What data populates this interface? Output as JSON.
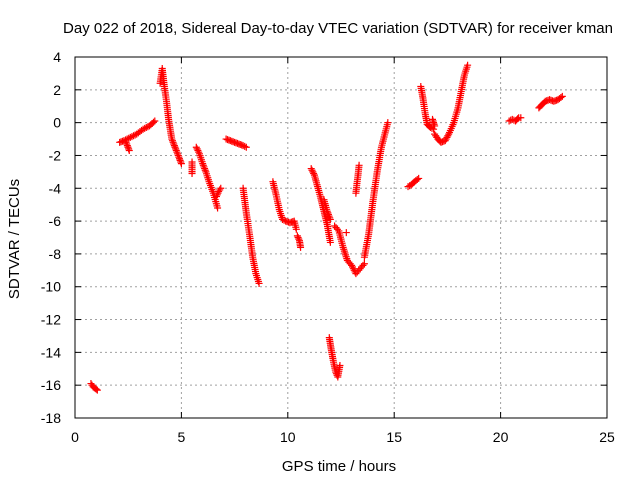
{
  "chart_data": {
    "type": "scatter",
    "title": "Day 022 of 2018, Sidereal Day-to-day VTEC variation (SDTVAR) for receiver kman",
    "xlabel": "GPS time / hours",
    "ylabel": "SDTVAR / TECUs",
    "xlim": [
      0,
      25
    ],
    "ylim": [
      -18,
      4
    ],
    "xticks": [
      0,
      5,
      10,
      15,
      20,
      25
    ],
    "yticks": [
      -18,
      -16,
      -14,
      -12,
      -10,
      -8,
      -6,
      -4,
      -2,
      0,
      2,
      4
    ],
    "grid": true,
    "marker": "+",
    "color": "#ff0000",
    "segments": [
      {
        "x": [
          0.75,
          0.85,
          0.95,
          1.05
        ],
        "y": [
          -15.9,
          -16.1,
          -16.2,
          -16.3
        ]
      },
      {
        "x": [
          2.1,
          2.3,
          2.6,
          2.9,
          3.2,
          3.5,
          3.75
        ],
        "y": [
          -1.2,
          -1.1,
          -0.9,
          -0.7,
          -0.4,
          -0.2,
          0.1
        ]
      },
      {
        "x": [
          2.4,
          2.55
        ],
        "y": [
          -1.2,
          -1.7
        ]
      },
      {
        "x": [
          4.0,
          4.1,
          4.2,
          4.3,
          4.4,
          4.55,
          4.7,
          4.85,
          5.0
        ],
        "y": [
          2.4,
          3.3,
          2.2,
          1.3,
          0.2,
          -1.0,
          -1.5,
          -2.0,
          -2.5
        ]
      },
      {
        "x": [
          5.5,
          5.5
        ],
        "y": [
          -2.4,
          -3.1
        ]
      },
      {
        "x": [
          5.7,
          5.85,
          6.0,
          6.15,
          6.3,
          6.5,
          6.7
        ],
        "y": [
          -1.5,
          -1.9,
          -2.5,
          -3.0,
          -3.6,
          -4.3,
          -5.2
        ]
      },
      {
        "x": [
          6.65,
          6.75,
          6.85
        ],
        "y": [
          -4.5,
          -4.2,
          -4.0
        ]
      },
      {
        "x": [
          7.1,
          7.3,
          7.5,
          7.7,
          7.9,
          8.05
        ],
        "y": [
          -1.0,
          -1.1,
          -1.2,
          -1.3,
          -1.4,
          -1.5
        ]
      },
      {
        "x": [
          7.9,
          8.05,
          8.2,
          8.35,
          8.5,
          8.65
        ],
        "y": [
          -4.0,
          -5.5,
          -6.8,
          -8.2,
          -9.2,
          -9.8
        ]
      },
      {
        "x": [
          9.3,
          9.45,
          9.6,
          9.75,
          9.9,
          10.1,
          10.3,
          10.4
        ],
        "y": [
          -3.6,
          -4.4,
          -5.3,
          -5.9,
          -6.0,
          -6.1,
          -6.0,
          -6.5
        ]
      },
      {
        "x": [
          10.45,
          10.55,
          10.6
        ],
        "y": [
          -6.9,
          -7.2,
          -7.6
        ]
      },
      {
        "x": [
          11.1,
          11.25,
          11.4,
          11.55,
          11.7,
          11.85,
          12.0
        ],
        "y": [
          -2.8,
          -3.2,
          -3.9,
          -4.6,
          -5.4,
          -6.2,
          -7.3
        ]
      },
      {
        "x": [
          11.7,
          11.85,
          12.0
        ],
        "y": [
          -4.7,
          -5.4,
          -5.9
        ]
      },
      {
        "x": [
          12.2,
          12.4,
          12.6,
          12.8,
          13.0,
          13.2,
          13.4,
          13.6
        ],
        "y": [
          -6.3,
          -6.6,
          -7.6,
          -8.4,
          -8.7,
          -9.2,
          -8.9,
          -8.6
        ]
      },
      {
        "x": [
          12.75
        ],
        "y": [
          -6.7
        ]
      },
      {
        "x": [
          13.2,
          13.25,
          13.3,
          13.35
        ],
        "y": [
          -4.3,
          -3.7,
          -3.2,
          -2.6
        ]
      },
      {
        "x": [
          13.6,
          13.8,
          14.0,
          14.2,
          14.4,
          14.6,
          14.7
        ],
        "y": [
          -8.2,
          -6.8,
          -4.8,
          -3.0,
          -1.5,
          -0.5,
          0.0
        ]
      },
      {
        "x": [
          11.95,
          12.05,
          12.15,
          12.25,
          12.35,
          12.45
        ],
        "y": [
          -13.1,
          -13.9,
          -14.6,
          -15.2,
          -15.5,
          -14.8
        ]
      },
      {
        "x": [
          15.65,
          15.8,
          15.95,
          16.15
        ],
        "y": [
          -3.9,
          -3.8,
          -3.6,
          -3.4
        ]
      },
      {
        "x": [
          16.25,
          16.35,
          16.45,
          16.55,
          16.7,
          16.85
        ],
        "y": [
          2.2,
          1.5,
          0.6,
          -0.1,
          -0.3,
          -0.4
        ]
      },
      {
        "x": [
          16.8,
          16.9
        ],
        "y": [
          0.2,
          -0.2
        ]
      },
      {
        "x": [
          16.9,
          17.05,
          17.2,
          17.4,
          17.6,
          17.8,
          18.0,
          18.15,
          18.3,
          18.45
        ],
        "y": [
          -0.7,
          -1.0,
          -1.2,
          -1.1,
          -0.6,
          0.0,
          0.9,
          1.9,
          2.9,
          3.5
        ]
      },
      {
        "x": [
          20.4,
          20.55,
          20.7,
          20.85,
          20.95
        ],
        "y": [
          0.1,
          0.2,
          0.1,
          0.3,
          0.3
        ]
      },
      {
        "x": [
          21.8,
          21.95,
          22.1,
          22.3,
          22.5,
          22.7,
          22.9
        ],
        "y": [
          0.9,
          1.1,
          1.3,
          1.4,
          1.3,
          1.4,
          1.6
        ]
      }
    ]
  }
}
